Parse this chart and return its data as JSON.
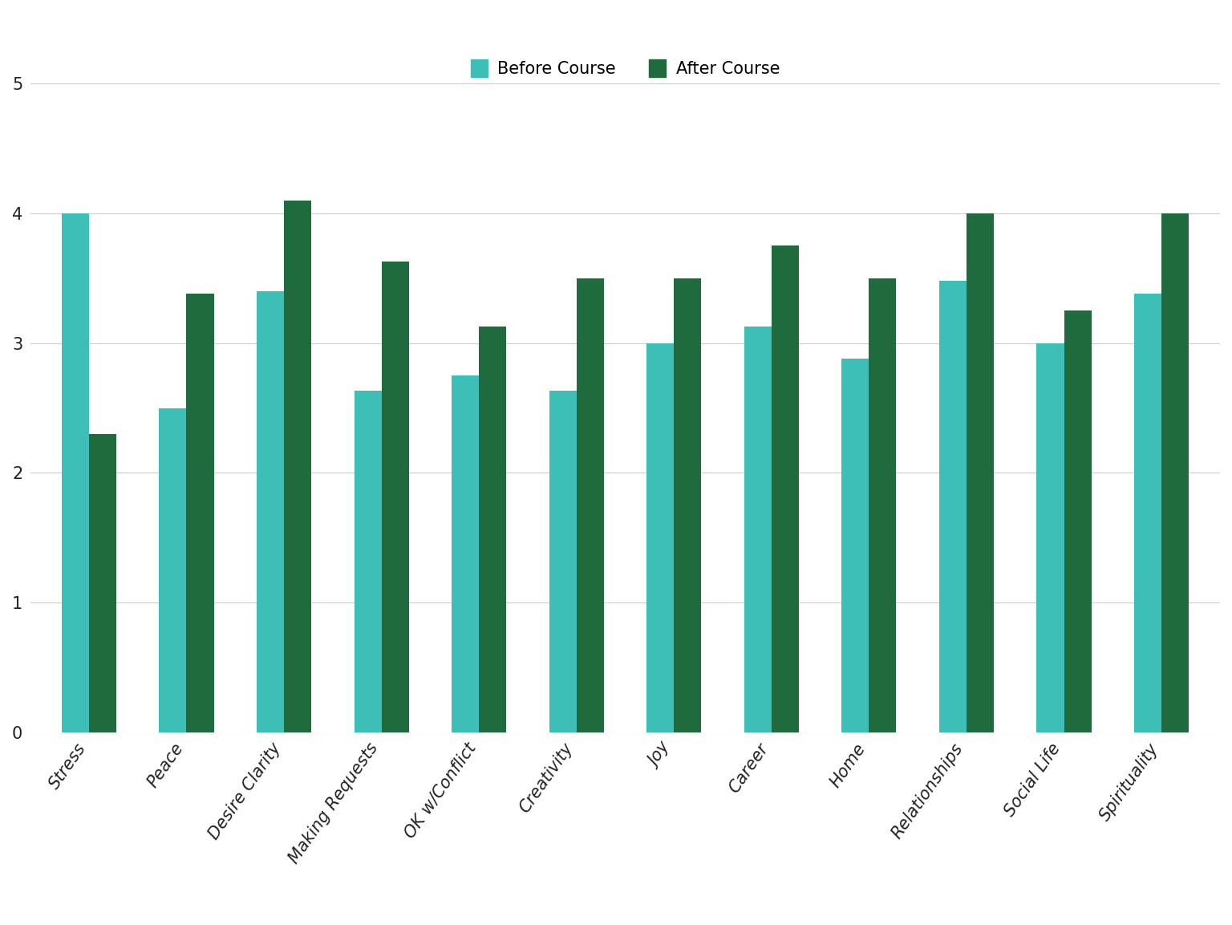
{
  "categories": [
    "Stress",
    "Peace",
    "Desire Clarity",
    "Making Requests",
    "OK w/Conflict",
    "Creativity",
    "Joy",
    "Career",
    "Home",
    "Relationships",
    "Social Life",
    "Spirituality"
  ],
  "before": [
    4.0,
    2.5,
    3.4,
    2.63,
    2.75,
    2.63,
    3.0,
    3.13,
    2.88,
    3.48,
    3.0,
    3.38
  ],
  "after": [
    2.3,
    3.38,
    4.1,
    3.63,
    3.13,
    3.5,
    3.5,
    3.75,
    3.5,
    4.0,
    3.25,
    4.0
  ],
  "before_color": "#3dbfb8",
  "after_color": "#1f6b3e",
  "background_color": "#ffffff",
  "legend_before": "Before Course",
  "legend_after": "After Course",
  "ylim": [
    0,
    5
  ],
  "yticks": [
    0,
    1,
    2,
    3,
    4,
    5
  ],
  "bar_width": 0.28,
  "tick_fontsize": 15,
  "legend_fontsize": 15,
  "grid_color": "#cccccc",
  "label_color": "#222222"
}
